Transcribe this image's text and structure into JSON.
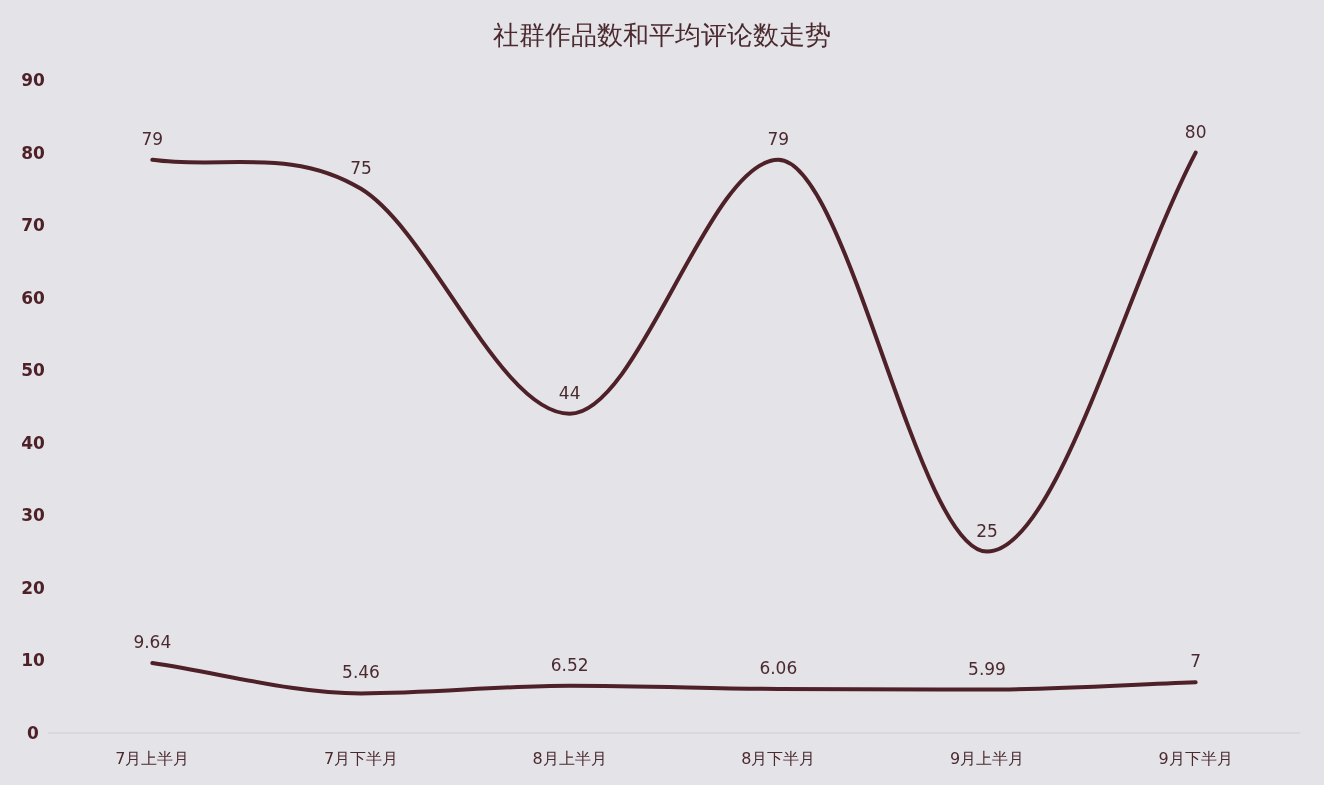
{
  "chart_data": {
    "type": "line",
    "title": "社群作品数和平均评论数走势",
    "categories": [
      "7月上半月",
      "7月下半月",
      "8月上半月",
      "8月下半月",
      "9月上半月",
      "9月下半月"
    ],
    "series": [
      {
        "color": "#4e2128",
        "values": [
          79,
          75,
          44,
          79,
          25,
          80
        ]
      },
      {
        "color": "#4e2128",
        "values": [
          9.64,
          5.46,
          6.52,
          6.06,
          5.99,
          7
        ]
      }
    ],
    "ylim": [
      0,
      90
    ],
    "yticks": [
      0,
      10,
      20,
      30,
      40,
      50,
      60,
      70,
      80,
      90
    ],
    "data_labels": true,
    "grid": false,
    "marker": "none",
    "line_style": "solid"
  }
}
